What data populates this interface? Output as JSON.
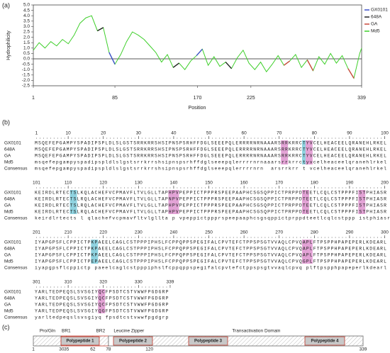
{
  "chart_data": {
    "type": "line",
    "xlabel": "Position",
    "ylabel": "Hydrophilicity",
    "x": [
      1,
      7,
      13,
      19,
      25,
      31,
      37,
      43,
      49,
      55,
      61,
      67,
      73,
      79,
      85,
      91,
      97,
      103,
      109,
      115,
      121,
      127,
      133,
      139,
      145,
      151,
      157,
      163,
      169,
      175,
      181,
      187,
      193,
      199,
      205,
      211,
      217,
      223,
      229,
      235,
      241,
      247,
      253,
      259,
      265,
      271,
      277,
      283,
      289,
      295,
      301,
      307,
      313,
      319,
      325,
      331,
      337,
      339
    ],
    "series": [
      {
        "name": "GX0101",
        "color": "#3a4fc8",
        "values": [
          null,
          null,
          null,
          null,
          null,
          null,
          null,
          null,
          null,
          null,
          null,
          null,
          null,
          0.6,
          -0.5,
          null,
          null,
          null,
          null,
          null,
          null,
          null,
          null,
          null,
          null,
          null,
          null,
          null,
          0.3,
          0.9,
          null,
          null,
          null,
          null,
          null,
          null,
          null,
          null,
          null,
          null,
          null,
          null,
          null,
          null,
          null,
          null,
          null,
          null,
          null,
          null,
          null,
          null,
          null,
          null,
          null,
          null,
          null,
          null
        ]
      },
      {
        "name": "648A",
        "color": "#222222",
        "values": [
          null,
          null,
          null,
          null,
          null,
          null,
          null,
          null,
          null,
          null,
          null,
          2.6,
          2.9,
          null,
          null,
          null,
          null,
          null,
          null,
          null,
          null,
          null,
          null,
          null,
          -0.8,
          -0.4,
          null,
          null,
          null,
          null,
          null,
          null,
          null,
          -0.3,
          -0.9,
          null,
          null,
          null,
          null,
          null,
          null,
          null,
          null,
          null,
          null,
          null,
          null,
          null,
          null,
          null,
          null,
          null,
          null,
          null,
          null,
          null,
          null,
          null
        ]
      },
      {
        "name": "GA",
        "color": "#c8493a",
        "values": [
          null,
          null,
          null,
          null,
          null,
          null,
          null,
          null,
          null,
          null,
          null,
          null,
          null,
          null,
          null,
          null,
          null,
          null,
          null,
          null,
          null,
          null,
          null,
          null,
          null,
          null,
          null,
          null,
          null,
          null,
          null,
          null,
          null,
          null,
          null,
          null,
          null,
          null,
          null,
          null,
          null,
          null,
          null,
          -0.6,
          -0.2,
          null,
          null,
          -0.1,
          -1.1,
          null,
          null,
          null,
          null,
          null,
          -0.9,
          -1.8,
          null,
          null
        ]
      },
      {
        "name": "Md5",
        "color": "#3ecf2a",
        "values": [
          0.8,
          1.5,
          1.0,
          1.6,
          1.2,
          1.8,
          1.4,
          2.2,
          3.3,
          3.8,
          4.0,
          2.6,
          2.9,
          0.6,
          -0.5,
          0.4,
          1.6,
          2.5,
          2.2,
          1.8,
          1.2,
          0.6,
          -0.3,
          0.4,
          -0.8,
          -0.4,
          -1.0,
          -0.2,
          0.3,
          0.9,
          -0.6,
          0.2,
          -0.7,
          -0.3,
          -0.9,
          0.1,
          0.8,
          -0.4,
          -1.0,
          -0.3,
          -1.2,
          -0.5,
          0.3,
          -0.6,
          -0.2,
          0.4,
          -0.8,
          -0.1,
          -1.1,
          0.2,
          -0.5,
          0.5,
          -0.4,
          0.3,
          -0.9,
          -1.8,
          0.5,
          1.0
        ]
      }
    ],
    "xlim": [
      1,
      339
    ],
    "xticks": [
      1,
      85,
      170,
      225,
      339
    ],
    "ylim": [
      -2.5,
      5
    ],
    "yticks": [
      {
        "value": -2.5,
        "label": "-2.5"
      },
      {
        "value": -2,
        "label": "-2.0"
      },
      {
        "value": -1.5,
        "label": "-1.5"
      },
      {
        "value": -1,
        "label": "-1.0"
      },
      {
        "value": -0.5,
        "label": "-0.5"
      },
      {
        "value": 0,
        "label": "0.0"
      },
      {
        "value": 0.5,
        "label": "0.5"
      },
      {
        "value": 1,
        "label": "1.0"
      },
      {
        "value": 1.5,
        "label": "1.5"
      },
      {
        "value": 2,
        "label": "2.0"
      },
      {
        "value": 2.5,
        "label": "2.5"
      },
      {
        "value": 3,
        "label": "3.0"
      },
      {
        "value": 3.5,
        "label": "3.5"
      },
      {
        "value": 4,
        "label": "4.0"
      },
      {
        "value": 4.5,
        "label": "4.5"
      },
      {
        "value": 5,
        "label": "5.0"
      }
    ],
    "legend": "right"
  },
  "panel_labels": [
    "(a)",
    "(b)",
    "(c)"
  ],
  "alignment": {
    "row_names": [
      "GX0101",
      "648A",
      "GA",
      "Md5",
      "Consensus"
    ],
    "blocks": [
      {
        "start": 1,
        "ruler": [
          10,
          20,
          30,
          40,
          50,
          60,
          70,
          80,
          90,
          100
        ],
        "rows": [
          "MSQEFEPGAMPYSPADIPSPLDLSLGSTSRRKRRSHSIPNSPSRHFFDGLSEEEPQLERRRRNRNAAARSRRKRRCTYVCELHEACEELQRANEHLRKEL",
          "MSQEFEPGAMPYSPADIPSPLDLSLGSTSRRKRRSHSIPNSPSRHFFDGLSEEEPQLERRRRNRNAAARSRRKRRCTYVCELHEACEELQRANEHLRKEL",
          "MSQEFEPGAMPYSPADIPSPLDLSLGSTSRRKRRSHSIPNSPSRHFFDGLSEEEPQLERRRRNRNAAARSRRKRRCTYVCELHEACEELQRANEHLRKEL",
          "msqefepgampyspadipspldlslgstsrrkrrshsipnspsrhffdglseeepqlerrrrnrnaaarsrrkrrctyvcelheaceelqranehlrkel",
          "msqefepgampyspadipspldlslgstsrrkrrshsipnspsrhffdglseeepqlerrrrnrn  arsrrkrr t vcelheaceelqranehlrkel"
        ]
      },
      {
        "start": 101,
        "ruler": [
          110,
          120,
          130,
          140,
          150,
          160,
          170,
          180,
          190,
          200
        ],
        "rows": [
          "KEIRDLRTECTSLKQLACHEFVCPMAVFLTVLGLLTAPHPVPEPPICTPPPRSPEEPAAPHCSGSQPPICTPRPPDTEETLCQLCSTPPPFISTPHIASR",
          "KEIRDLRTECTSLRQLACHEFVCPMAVFLTVLGLLTAPNPVPEPPICTPPPRSPEEPAAPHCSGSQPPICTPRPPDTEETLCQLCSTPPPFISTPHIASR",
          "KEIRDLRTECTSLRQLACHEFVCPMAVFLTVLGLLTAPHPVPEPPICTPPPRSPEEPAAPHCSGSQPPICTPRPPDTEETLCQLCSTPPPFISTPHIASR",
          "KEIRDLRTECTSLRQLACHEFVCPMAVFLTVLGLLTAPHPVPEPPICTPPPRSPEEPAAPHCSGSQPPICTPRPPDTEETLCQLCSTPPPFISTPHIASR",
          "keirdlrtects l qlachefvcpmavfltvlgllta p vpeppictppprspeepaaphcsgsqppictprppdteetlcqlcstppp istphiasr"
        ]
      },
      {
        "start": 201,
        "ruler": [
          210,
          220,
          230,
          240,
          250,
          260,
          270,
          280,
          290,
          300
        ],
        "rows": [
          "IYAPGPSFLCPPICTPKPAEELCAGLCSTPPPIPHSLFCPPQPPSPEGIFALCPVTEFCTPPSPSGTVVAQLCPVQAPLFTPSPPHPAPEPERLKDEARL",
          "IYAPGPSFLCPPICTPKPAEELCAGLCSTPPPIPHSLFCPPQPPSPEGIFALCPVTEFCTPPSPSGTVVAQLCPVQAPLFTPSPPHPAPEPERLKDEARL",
          "IYAPGPSFLCPPICTPKPAEELCAGLCSTPPPIPHSLFCPPQPPSPEGIFALCPVTEFCTPPSPSGTVVAQLCPVQAPLFTPSPPHPAPEPERLKDEARL",
          "IYAPGPSFLCPPICTPEPAEELCAGLCSTPPPIPHSLFCPPQPPSPEGIFALCPVTEFCTPPSPSGTVVAQLCPVQGPLFTPSPPHPAPEPERLKDEARL",
          "iyapgpsflcppictp paeelcaglcstpppiphslfcppqppspegifalcpvtefctppspsgtvvaqlcpvq plftpspphpapeperlkdearl"
        ]
      },
      {
        "start": 301,
        "ruler": [
          310,
          320,
          330,
          339
        ],
        "rows": [
          "YARLTEDPEQSLSVSGIYQCFPSDTCSTVWWFPGDGRP",
          "YARLTEDPEQSLSVSGIYQCFPSDTCSTVWWFPGDGRP",
          "YARLTEDPEQSLSVSGIYQCFPSDTCSTVWWFPGDGRP",
          "YARLTEDPEQSLSVSGIYQGFPSDTCSTVWWFPGDGRP",
          "yarltedpeqslsvsgiyq fpsdtcstvwwfpgdgrp"
        ]
      }
    ]
  },
  "domain_map": {
    "labels": [
      "Pro/Gln",
      "BR1",
      "BR2",
      "Leucine Zipper",
      "Transactivation Domain"
    ],
    "polypeptides": [
      "Polypeptide 1",
      "Polypeptide 2",
      "Polypeptide 3",
      "Polypeptide 4"
    ],
    "ticks": [
      1,
      30,
      35,
      62,
      78,
      120,
      339
    ]
  }
}
